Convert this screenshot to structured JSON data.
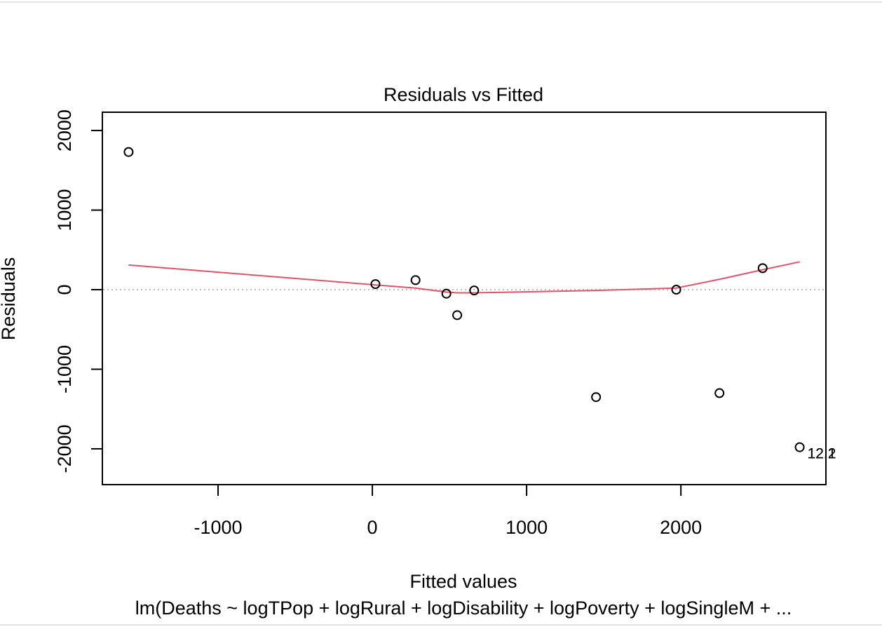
{
  "chart_data": {
    "type": "scatter",
    "title": "Residuals vs Fitted",
    "xlabel": "Fitted values",
    "ylabel": "Residuals",
    "caption": "lm(Deaths ~ logTPop + logRural + logDisability + logPoverty + logSingleM +  ...",
    "xlim": [
      -1750,
      2940
    ],
    "ylim": [
      -2450,
      2230
    ],
    "xticks": [
      -1000,
      0,
      1000,
      2000
    ],
    "xtick_labels": [
      "-1000",
      "0",
      "1000",
      "2000"
    ],
    "yticks": [
      -2000,
      -1000,
      0,
      1000,
      2000
    ],
    "ytick_labels": [
      "-2000",
      "-1000",
      "0",
      "1000",
      "2000"
    ],
    "points": [
      {
        "x": -1580,
        "y": 1730
      },
      {
        "x": 20,
        "y": 70
      },
      {
        "x": 280,
        "y": 120
      },
      {
        "x": 480,
        "y": -50
      },
      {
        "x": 550,
        "y": -320
      },
      {
        "x": 660,
        "y": -10
      },
      {
        "x": 1450,
        "y": -1350
      },
      {
        "x": 1970,
        "y": 0
      },
      {
        "x": 2250,
        "y": -1300
      },
      {
        "x": 2530,
        "y": 270
      },
      {
        "x": 2770,
        "y": -1980
      }
    ],
    "point_labels": [
      {
        "x": 2770,
        "y": -1980,
        "text": "12.1"
      },
      {
        "x": 2770,
        "y": -1980,
        "text": "12.2"
      }
    ],
    "smooth_line": {
      "color": "#DF536B",
      "x": [
        -1580,
        20,
        280,
        480,
        550,
        660,
        1450,
        1970,
        2250,
        2530,
        2770
      ],
      "y": [
        310,
        60,
        20,
        -30,
        -40,
        -40,
        -10,
        20,
        130,
        250,
        350
      ]
    },
    "reference_line": {
      "y": 0,
      "color": "#BEBEBE",
      "style": "dotted"
    },
    "grid": false,
    "legend": "none"
  }
}
